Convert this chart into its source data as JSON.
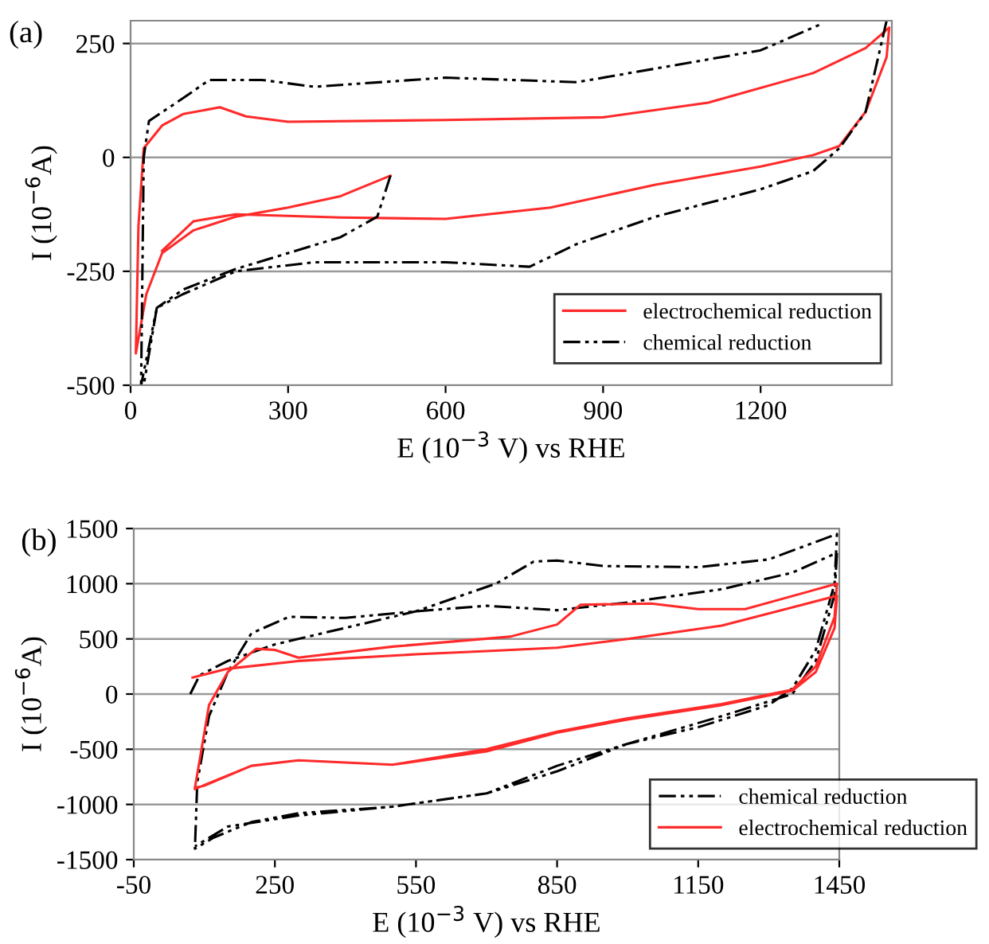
{
  "chart_data": [
    {
      "type": "line",
      "title": "(a)",
      "xlabel": "E (10$^{−3}$ V) vs RHE",
      "ylabel": "I (10$^{−6}$A)",
      "xlim": [
        0,
        1450
      ],
      "xticks": [
        0,
        300,
        600,
        900,
        1200
      ],
      "ylim": [
        -500,
        300
      ],
      "yticks": [
        -500,
        -250,
        0,
        250
      ],
      "grid": "y",
      "legend": "bottom right",
      "series": [
        {
          "name": "electrochemical reduction",
          "color": "#ff2a2a",
          "line_style": "solid",
          "x": [
            495,
            400,
            300,
            200,
            120,
            60,
            30,
            10,
            15,
            25,
            60,
            100,
            170,
            220,
            300,
            600,
            900,
            1100,
            1300,
            1400,
            1445,
            1440,
            1400,
            1350,
            1300,
            1200,
            1000,
            800,
            600,
            400,
            200,
            120,
            60
          ],
          "values": [
            -40,
            -85,
            -110,
            -130,
            -160,
            -210,
            -300,
            -430,
            -150,
            20,
            70,
            95,
            110,
            90,
            78,
            82,
            88,
            120,
            185,
            240,
            285,
            220,
            100,
            25,
            5,
            -20,
            -60,
            -110,
            -135,
            -132,
            -125,
            -140,
            -205
          ]
        },
        {
          "name": "chemical reduction",
          "color": "#000000",
          "line_style": "dashdot",
          "x": [
            495,
            470,
            400,
            300,
            200,
            100,
            50,
            20,
            25,
            35,
            100,
            150,
            250,
            350,
            600,
            850,
            1000,
            1200,
            1320
          ],
          "values": [
            -40,
            -130,
            -175,
            -210,
            -245,
            -290,
            -330,
            -500,
            0,
            80,
            130,
            170,
            170,
            155,
            175,
            165,
            195,
            235,
            295
          ]
        },
        {
          "color": "#000000",
          "line_style": "dashdot",
          "x": [
            1440,
            1400,
            1350,
            1300,
            1200,
            1000,
            850,
            760,
            600,
            350,
            200,
            100,
            50,
            25
          ],
          "values": [
            300,
            100,
            20,
            -30,
            -70,
            -130,
            -190,
            -240,
            -230,
            -230,
            -250,
            -300,
            -330,
            -500
          ]
        }
      ]
    },
    {
      "type": "line",
      "title": "(b)",
      "xlabel": "E (10$^{−3}$ V) vs RHE",
      "ylabel": "I (10$^{−6}$A)",
      "xlim": [
        -50,
        1450
      ],
      "xticks": [
        -50,
        250,
        550,
        850,
        1150,
        1450
      ],
      "ylim": [
        -1500,
        1500
      ],
      "yticks": [
        -1500,
        -1000,
        -500,
        0,
        500,
        1000,
        1500
      ],
      "grid": "y",
      "legend": "bottom right",
      "series": [
        {
          "name": "chemical reduction",
          "color": "#000000",
          "line_style": "dashdot",
          "x": [
            70,
            90,
            150,
            250,
            400,
            550,
            720,
            800,
            850,
            950,
            1150,
            1300,
            1445,
            1440,
            1400,
            1350,
            1300,
            1150,
            1000,
            850,
            700,
            500,
            300,
            200,
            120,
            80,
            85,
            110,
            150,
            200,
            280,
            400,
            550,
            700,
            850,
            1000,
            1200,
            1350,
            1445,
            1440,
            1400,
            1350,
            1200,
            1000,
            850,
            700,
            500,
            300,
            150,
            80
          ],
          "values": [
            0,
            170,
            300,
            450,
            600,
            750,
            1000,
            1200,
            1210,
            1160,
            1150,
            1220,
            1450,
            1000,
            400,
            50,
            -100,
            -300,
            -450,
            -650,
            -900,
            -1020,
            -1080,
            -1160,
            -1300,
            -1400,
            -800,
            -200,
            200,
            550,
            700,
            690,
            750,
            800,
            760,
            830,
            950,
            1100,
            1280,
            900,
            300,
            0,
            -200,
            -450,
            -700,
            -900,
            -1020,
            -1100,
            -1200,
            -1380
          ]
        },
        {
          "name": "electrochemical reduction",
          "color": "#ff2a2a",
          "line_style": "solid",
          "x": [
            75,
            150,
            300,
            550,
            700,
            850,
            1000,
            1200,
            1445,
            1440,
            1400,
            1350,
            1200,
            1000,
            850,
            700,
            500,
            300,
            200,
            100,
            80,
            90,
            110,
            150,
            210,
            250,
            300,
            500,
            750,
            850,
            900,
            1050,
            1150,
            1250,
            1445,
            1440,
            1400,
            1350,
            1200,
            1000,
            850,
            700,
            500,
            300,
            200,
            80
          ],
          "values": [
            150,
            230,
            300,
            360,
            390,
            420,
            500,
            620,
            890,
            600,
            200,
            30,
            -100,
            -230,
            -350,
            -520,
            -640,
            -600,
            -650,
            -830,
            -850,
            -600,
            -100,
            200,
            410,
            400,
            330,
            430,
            520,
            630,
            810,
            820,
            770,
            770,
            1000,
            700,
            250,
            40,
            -90,
            -220,
            -340,
            -500,
            -640,
            -600,
            -650,
            -860
          ]
        }
      ]
    }
  ]
}
